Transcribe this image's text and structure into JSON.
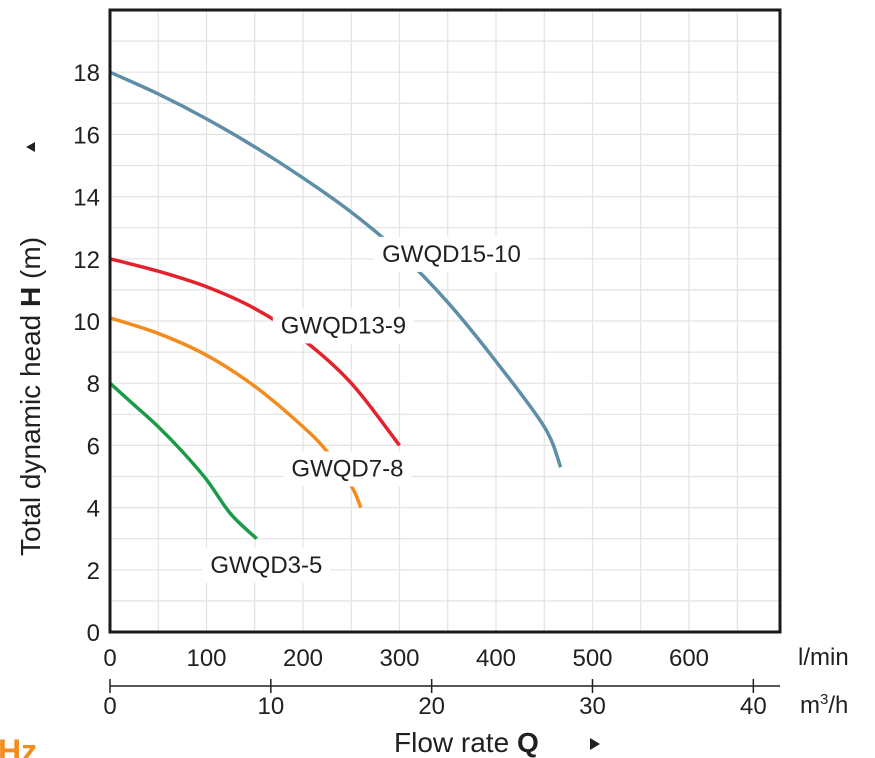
{
  "chart_data": {
    "type": "line",
    "xlabel_prefix": "Flow rate ",
    "xlabel_bold": "Q",
    "ylabel_prefix": "Total dynamic head ",
    "ylabel_bold": "H",
    "ylabel_suffix": " (m)",
    "x_unit_primary": "l/min",
    "x_unit_secondary_base": "m",
    "x_unit_secondary_exp": "3",
    "x_unit_secondary_tail": "/h",
    "xlim": [
      0,
      700
    ],
    "ylim": [
      0,
      20
    ],
    "grid": true,
    "x_ticks": [
      0,
      100,
      200,
      300,
      400,
      500,
      600
    ],
    "x2_ticks": [
      0,
      10,
      20,
      30,
      40
    ],
    "y_ticks": [
      0,
      2,
      4,
      6,
      8,
      10,
      12,
      14,
      16,
      18
    ],
    "series": [
      {
        "name": "GWQD15-10",
        "color": "#5f8fa8",
        "label_at": [
          282,
          11.9
        ],
        "points": [
          [
            0,
            18
          ],
          [
            50,
            17.3
          ],
          [
            100,
            16.5
          ],
          [
            150,
            15.6
          ],
          [
            200,
            14.6
          ],
          [
            250,
            13.5
          ],
          [
            300,
            12.2
          ],
          [
            350,
            10.6
          ],
          [
            400,
            8.7
          ],
          [
            450,
            6.6
          ],
          [
            467,
            5.3
          ]
        ]
      },
      {
        "name": "GWQD13-9",
        "color": "#e3232c",
        "label_at": [
          177,
          9.6
        ],
        "points": [
          [
            0,
            12
          ],
          [
            50,
            11.6
          ],
          [
            100,
            11.1
          ],
          [
            150,
            10.4
          ],
          [
            200,
            9.4
          ],
          [
            250,
            8.0
          ],
          [
            300,
            6.0
          ]
        ]
      },
      {
        "name": "GWQD7-8",
        "color": "#f28c1e",
        "label_at": [
          188,
          5.0
        ],
        "points": [
          [
            0,
            10.1
          ],
          [
            50,
            9.6
          ],
          [
            100,
            8.9
          ],
          [
            150,
            7.9
          ],
          [
            200,
            6.6
          ],
          [
            225,
            5.8
          ],
          [
            250,
            4.7
          ],
          [
            260,
            4.0
          ]
        ]
      },
      {
        "name": "GWQD3-5",
        "color": "#1a9b48",
        "label_at": [
          104,
          1.9
        ],
        "points": [
          [
            0,
            8
          ],
          [
            25,
            7.3
          ],
          [
            50,
            6.6
          ],
          [
            75,
            5.8
          ],
          [
            100,
            4.9
          ],
          [
            125,
            3.8
          ],
          [
            152,
            3.0
          ]
        ]
      }
    ]
  },
  "brand_fragment": "Hz",
  "brand_color": "#f28c1e"
}
